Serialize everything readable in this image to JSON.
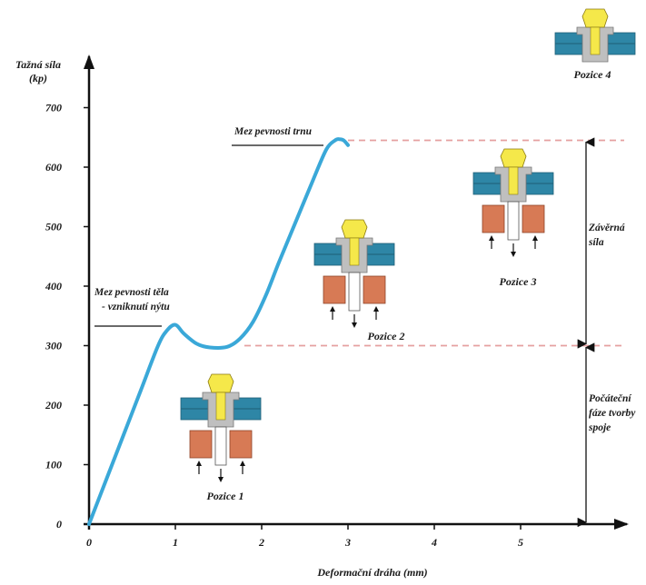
{
  "chart_data": {
    "type": "line",
    "title": "",
    "ylabel_lines": [
      "Tažná síla",
      "(kp)"
    ],
    "xlabel": "Deformační dráha (mm)",
    "y_ticks": [
      0,
      100,
      200,
      300,
      400,
      500,
      600,
      700
    ],
    "x_ticks": [
      0,
      1,
      2,
      3,
      4,
      5
    ],
    "xlim": [
      0,
      6.3
    ],
    "ylim": [
      0,
      800
    ],
    "grid": false,
    "series": [
      {
        "color": "#3aa8d8",
        "x": [
          0,
          0.2,
          0.4,
          0.6,
          0.8,
          0.9,
          1.0,
          1.1,
          1.25,
          1.4,
          1.6,
          1.75,
          1.9,
          2.05,
          2.2,
          2.4,
          2.6,
          2.75,
          2.85,
          2.9,
          2.95,
          3.0
        ],
        "y": [
          0,
          75,
          150,
          225,
          300,
          325,
          335,
          320,
          303,
          297,
          298,
          312,
          340,
          385,
          440,
          510,
          580,
          630,
          645,
          647,
          645,
          637
        ]
      }
    ],
    "reference_lines": [
      {
        "y": 645,
        "x_from": 3.0,
        "x_to": 6.2,
        "style": "dashed",
        "color": "#e5a0a0"
      },
      {
        "y": 300,
        "x_from": 1.8,
        "x_to": 6.2,
        "style": "dashed",
        "color": "#e5a0a0"
      }
    ],
    "annotations": [
      {
        "lines": [
          "Mez pevnosti trnu"
        ],
        "x": 1.75,
        "y": 670
      },
      {
        "lines": [
          "Mez pevnosti těla",
          "- vzniknutí nýtu"
        ],
        "x": 0.15,
        "y": 375
      },
      {
        "lines": [
          "Závěrná",
          "síla"
        ],
        "x": 5.8,
        "y": 480
      },
      {
        "lines": [
          "Počáteční",
          "fáze tvorby",
          "spoje"
        ],
        "x": 5.8,
        "y": 180
      }
    ],
    "positions": [
      {
        "label": "Pozice 1",
        "x": 1.55,
        "y": 120
      },
      {
        "label": "Pozice 2",
        "x": 2.9,
        "y": 360
      },
      {
        "label": "Pozice 3",
        "x": 5.1,
        "y": 575
      },
      {
        "label": "Pozice 4",
        "x": 5.9,
        "y": 850
      }
    ]
  },
  "colors": {
    "curve": "#3aa8d8",
    "plate": "#2e86a6",
    "sleeve": "#d77a55",
    "mandrel": "#f5e84a",
    "rivet_body": "#bfbfbf",
    "dashed": "#e5a0a0"
  }
}
